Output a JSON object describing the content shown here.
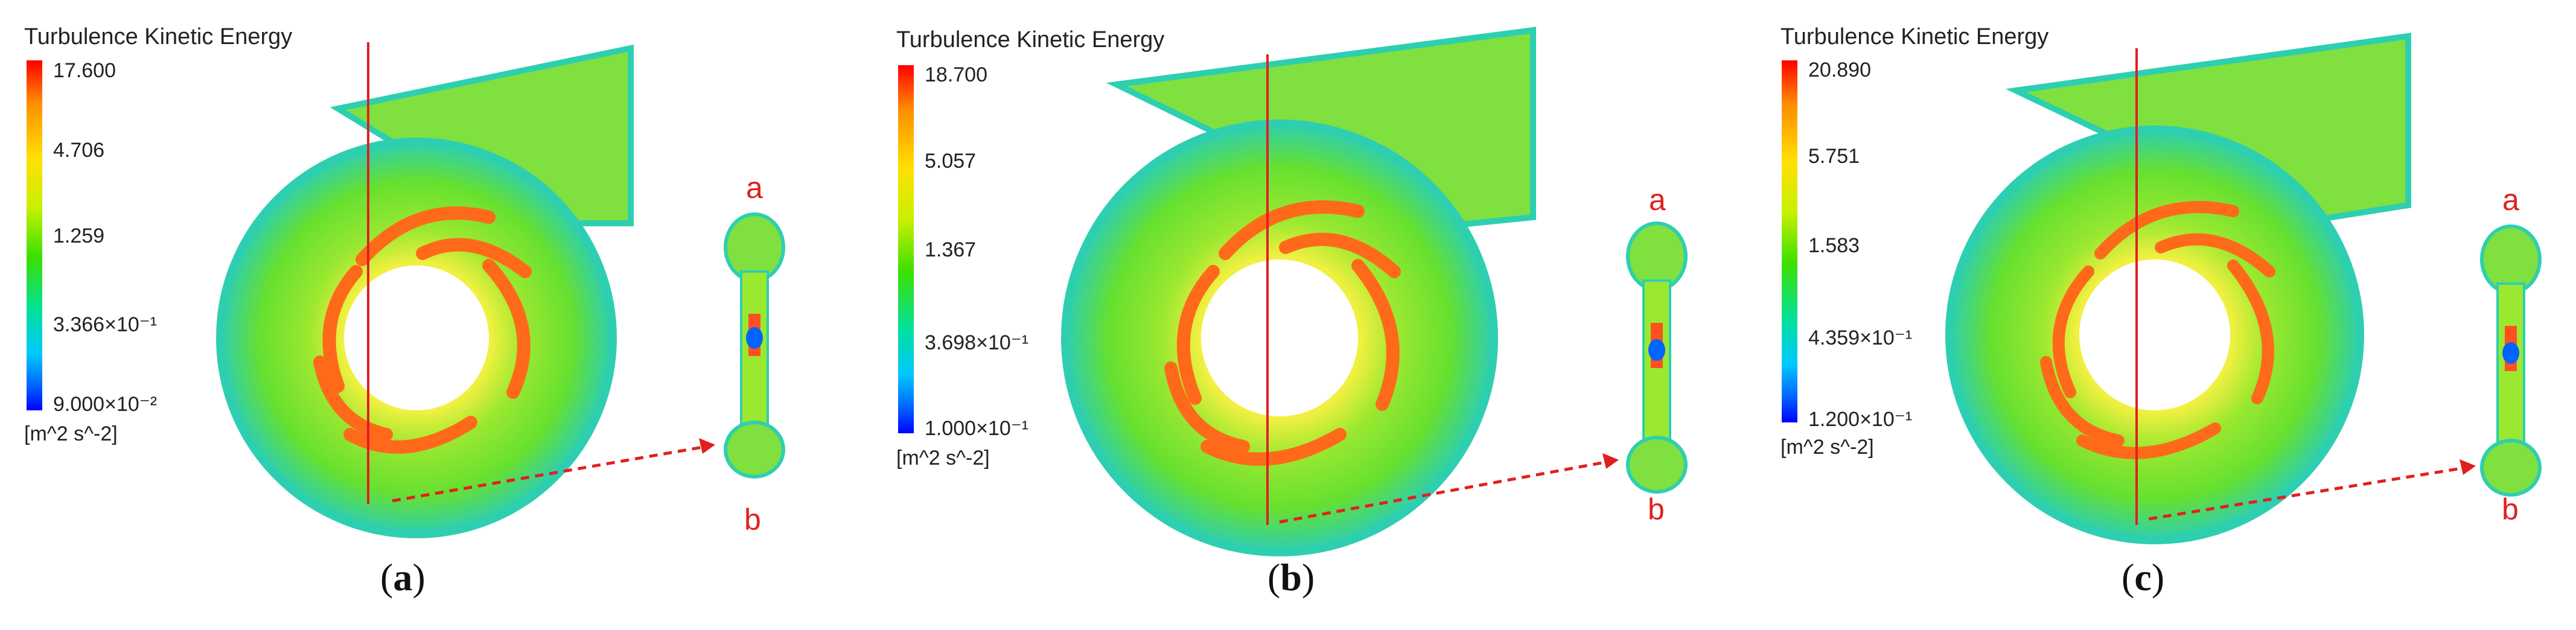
{
  "panels": [
    {
      "legend_title": "Turbulence Kinetic Energy",
      "ticks": [
        "17.600",
        "4.706",
        "1.259",
        "3.366×10⁻¹",
        "9.000×10⁻²"
      ],
      "unit": "[m^2 s^-2]",
      "label_top": "a",
      "label_bottom": "b",
      "caption_letter": "a"
    },
    {
      "legend_title": "Turbulence Kinetic Energy",
      "ticks": [
        "18.700",
        "5.057",
        "1.367",
        "3.698×10⁻¹",
        "1.000×10⁻¹"
      ],
      "unit": "[m^2 s^-2]",
      "label_top": "a",
      "label_bottom": "b",
      "caption_letter": "b"
    },
    {
      "legend_title": "Turbulence Kinetic Energy",
      "ticks": [
        "20.890",
        "5.751",
        "1.583",
        "4.359×10⁻¹",
        "1.200×10⁻¹"
      ],
      "unit": "[m^2 s^-2]",
      "label_top": "a",
      "label_bottom": "b",
      "caption_letter": "c"
    }
  ],
  "colors": {
    "section_line": "#e02020",
    "arrow": "#e02020",
    "field_low": "#2ecfb0",
    "field_mid": "#66e030",
    "field_high": "#f0f040",
    "field_peak": "#ff5020"
  }
}
